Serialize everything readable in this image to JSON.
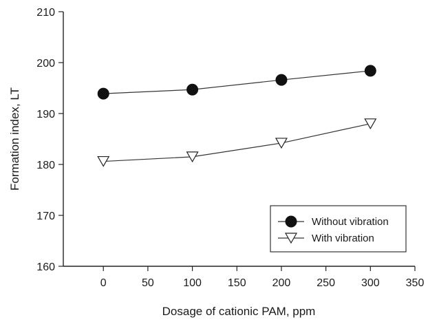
{
  "chart_data": {
    "type": "line",
    "title": "",
    "xlabel": "Dosage of cationic PAM, ppm",
    "ylabel": "Formation index, LT",
    "xlim": [
      -45,
      350
    ],
    "ylim": [
      160,
      210
    ],
    "xticks": [
      0,
      50,
      100,
      150,
      200,
      250,
      300,
      350
    ],
    "yticks": [
      160,
      170,
      180,
      190,
      200,
      210
    ],
    "grid": false,
    "legend_position": "bottom-right",
    "series": [
      {
        "name": "Without vibration",
        "marker": "filled-circle",
        "x": [
          0,
          100,
          200,
          300
        ],
        "values": [
          193.9,
          194.7,
          196.6,
          198.4
        ]
      },
      {
        "name": "With vibration",
        "marker": "open-triangle-down",
        "x": [
          0,
          100,
          200,
          300
        ],
        "values": [
          180.6,
          181.5,
          184.2,
          188.0
        ]
      }
    ]
  }
}
